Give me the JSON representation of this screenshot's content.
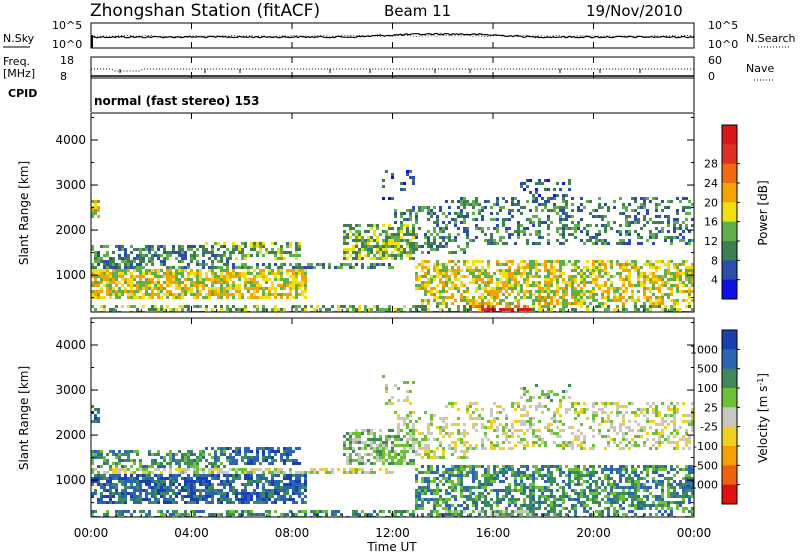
{
  "header": {
    "title": "Zhongshan Station (fitACF)",
    "beam": "Beam 11",
    "date": "19/Nov/2010"
  },
  "noise_panel": {
    "left_label": "N.Sky",
    "right_label": "N.Search",
    "left_ticks": [
      "10^5",
      "10^0"
    ],
    "right_ticks": [
      "10^5",
      "10^0"
    ]
  },
  "freq_panel": {
    "left_label": "Freq.",
    "left_unit": "[MHz]",
    "right_label": "Nave",
    "left_ticks": [
      "18",
      "8"
    ],
    "right_ticks": [
      "60",
      "0"
    ]
  },
  "cpid": {
    "label": "CPID",
    "value": "normal (fast stereo) 153"
  },
  "chart_data": [
    {
      "type": "heatmap",
      "title": "",
      "ylabel": "Slant Range [km]",
      "xlabel": "",
      "ylim": [
        180,
        4600
      ],
      "yticks": [
        "1000",
        "2000",
        "3000",
        "4000"
      ],
      "x_ticks": [
        "00:00",
        "04:00",
        "08:00",
        "12:00",
        "16:00",
        "20:00",
        "00:00"
      ],
      "colorbar": {
        "label": "Power [dB]",
        "ticks": [
          "4",
          "8",
          "12",
          "16",
          "20",
          "24",
          "28"
        ],
        "colors": [
          "#1010e8",
          "#2c4ea8",
          "#3d7f52",
          "#5fb04b",
          "#f0e010",
          "#f5a300",
          "#ef6a10",
          "#e03020",
          "#d81818"
        ]
      }
    },
    {
      "type": "heatmap",
      "title": "",
      "ylabel": "Slant Range [km]",
      "xlabel": "Time UT",
      "ylim": [
        180,
        4600
      ],
      "yticks": [
        "1000",
        "2000",
        "3000",
        "4000"
      ],
      "x_ticks": [
        "00:00",
        "04:00",
        "08:00",
        "12:00",
        "16:00",
        "20:00",
        "00:00"
      ],
      "colorbar": {
        "label": "Velocity [m s^-1]",
        "ticks": [
          "1000",
          "500",
          "100",
          "25",
          "-25",
          "-100",
          "-500",
          "-1000"
        ],
        "colors": [
          "#1a3fb0",
          "#2a64b4",
          "#3d8a5a",
          "#6cc034",
          "#c8c8c0",
          "#f0d020",
          "#f5a000",
          "#ef6010",
          "#e01010"
        ]
      }
    }
  ]
}
